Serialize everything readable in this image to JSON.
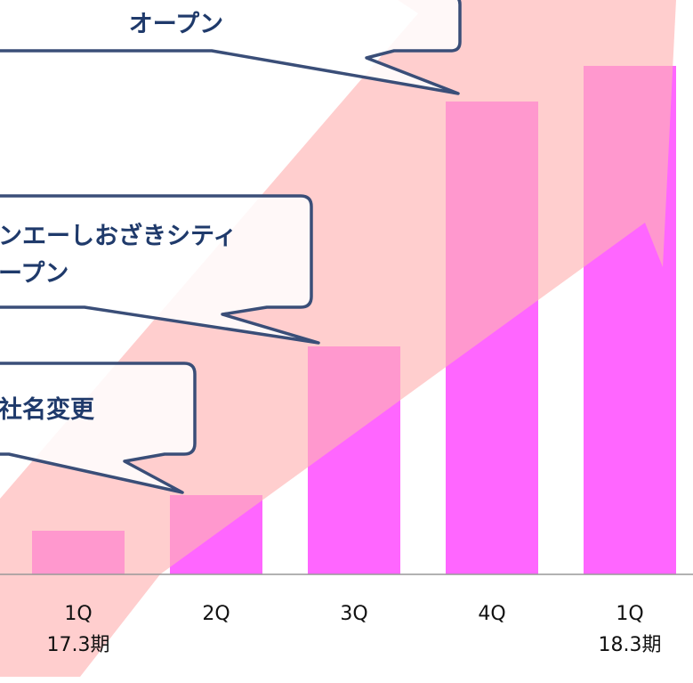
{
  "chart_data": {
    "type": "bar",
    "categories": [
      "1Q",
      "2Q",
      "3Q",
      "4Q",
      "1Q"
    ],
    "values": [
      49,
      89,
      256,
      531,
      571
    ],
    "period_labels": [
      "17.3期",
      "18.3期"
    ],
    "colors": {
      "bar": "#ff66ff",
      "trend_arrow": "#ffb3b3",
      "callout_border": "#3a4e78",
      "callout_text": "#1f3a6b",
      "axis": "#999999"
    },
    "grid": false,
    "legend": "none",
    "annotations": [
      {
        "lines": [
          "オープン"
        ],
        "category_index": 3
      },
      {
        "lines": [
          "ンエーしおざきシティ",
          "ープン"
        ],
        "category_index": 2
      },
      {
        "lines": [
          "社名変更"
        ],
        "category_index": 1
      }
    ]
  }
}
